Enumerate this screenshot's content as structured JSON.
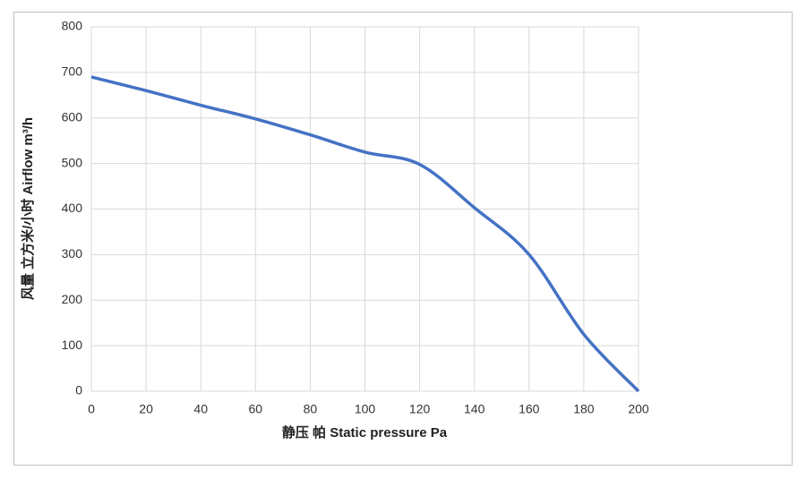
{
  "chart_data": {
    "type": "line",
    "x_label": "静压 帕 Static pressure Pa",
    "y_label": "风量 立方米/小时 Airflow m³/h",
    "x": [
      0,
      20,
      40,
      60,
      80,
      100,
      120,
      140,
      160,
      180,
      200
    ],
    "series": [
      {
        "name": "Airflow",
        "color": "#4472c4",
        "values": [
          690,
          660,
          628,
          598,
          563,
          525,
          498,
          403,
          300,
          125,
          0
        ]
      }
    ],
    "xlim": [
      0,
      200
    ],
    "xticks": [
      0,
      20,
      40,
      60,
      80,
      100,
      120,
      140,
      160,
      180,
      200
    ],
    "ylim": [
      0,
      800
    ],
    "yticks": [
      0,
      100,
      200,
      300,
      400,
      500,
      600,
      700,
      800
    ],
    "grid": true
  }
}
